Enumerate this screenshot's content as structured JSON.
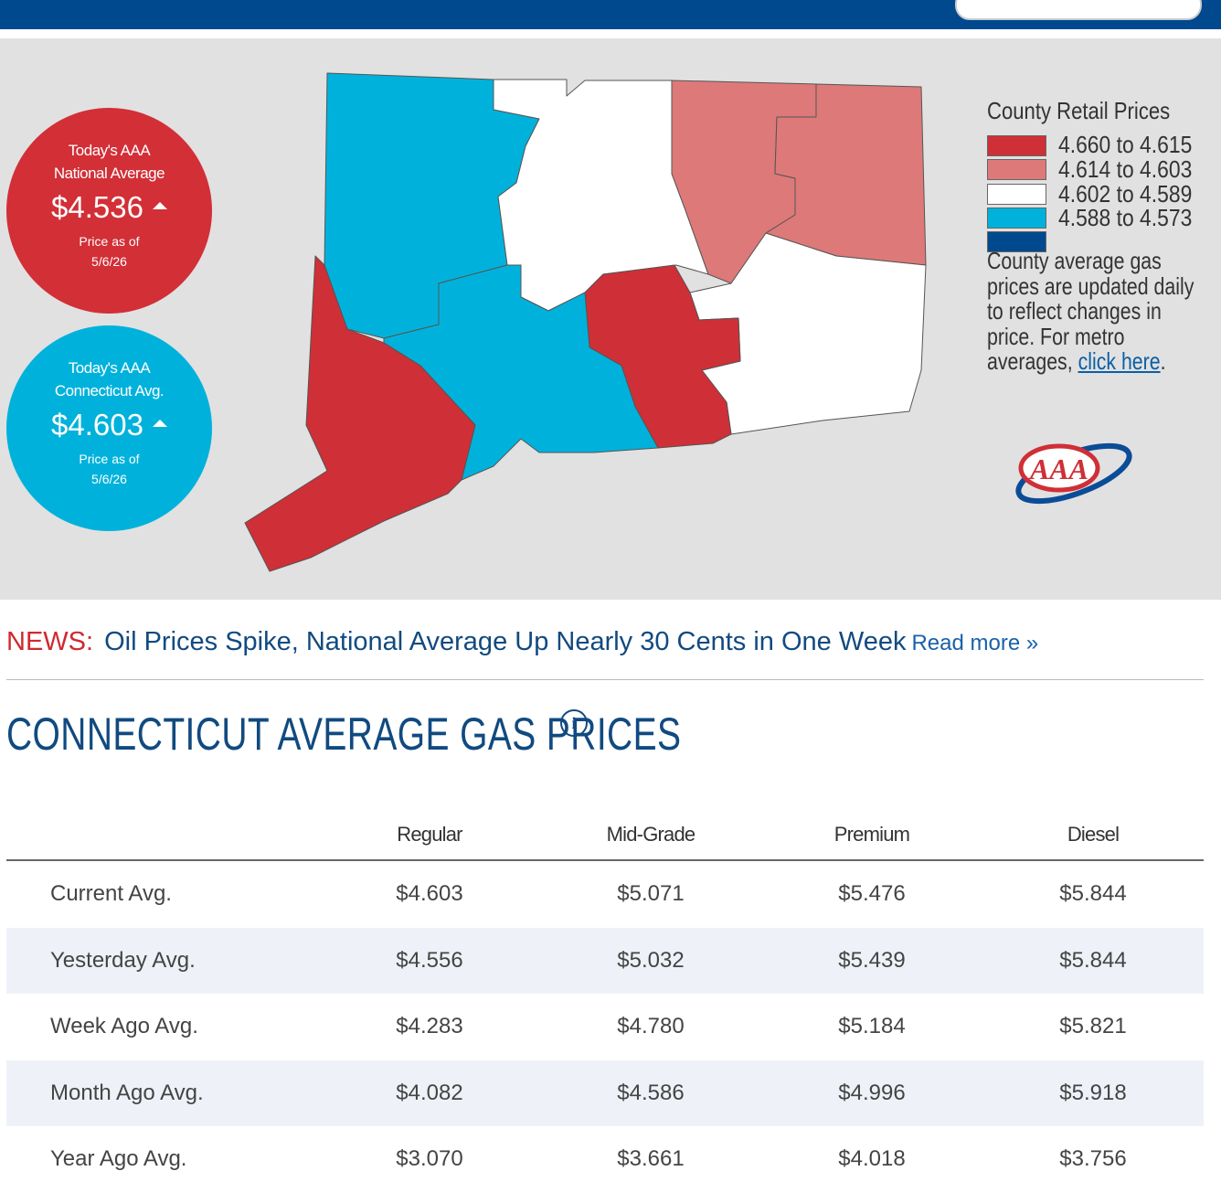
{
  "national": {
    "line1": "Today's AAA",
    "line2": "National Average",
    "price": "$4.536",
    "date_label": "Price as of",
    "date": "5/6/26"
  },
  "state": {
    "line1": "Today's AAA",
    "line2": "Connecticut Avg.",
    "price": "$4.603",
    "date_label": "Price as of",
    "date": "5/6/26"
  },
  "legend": {
    "title": "County Retail Prices",
    "items": [
      "4.660 to 4.615",
      "4.614 to 4.603",
      "4.602 to 4.589",
      "4.588 to 4.573"
    ],
    "note": "County average gas prices are updated daily to reflect changes in price. For metro averages,",
    "link": "click here",
    "end": "."
  },
  "logo": "AAA",
  "news": {
    "label": "NEWS:",
    "headline": "Oil Prices Spike, National Average Up Nearly 30 Cents in One Week",
    "more": "Read more »"
  },
  "section_title": "CONNECTICUT AVERAGE GAS PRICES",
  "info_icon": "i",
  "table": {
    "columns": [
      "Regular",
      "Mid-Grade",
      "Premium",
      "Diesel"
    ],
    "rows": [
      [
        "Current Avg.",
        "$4.603",
        "$5.071",
        "$5.476",
        "$5.844"
      ],
      [
        "Yesterday Avg.",
        "$4.556",
        "$5.032",
        "$5.439",
        "$5.844"
      ],
      [
        "Week Ago Avg.",
        "$4.283",
        "$4.780",
        "$5.184",
        "$5.821"
      ],
      [
        "Month Ago Avg.",
        "$4.082",
        "$4.586",
        "$4.996",
        "$5.918"
      ],
      [
        "Year Ago Avg.",
        "$3.070",
        "$3.661",
        "$4.018",
        "$3.756"
      ]
    ]
  }
}
